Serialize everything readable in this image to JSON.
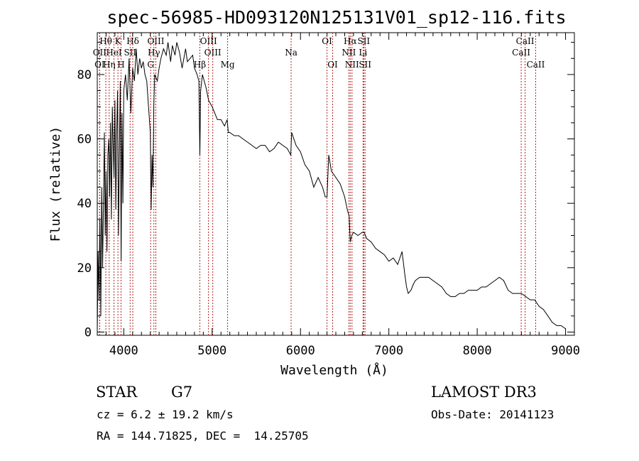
{
  "chart_data": {
    "type": "line",
    "title": "spec-56985-HD093120N125131V01_sp12-116.fits",
    "xlabel": "Wavelength (Å)",
    "ylabel": "Flux (relative)",
    "xlim": [
      3700,
      9100
    ],
    "ylim": [
      -1,
      93
    ],
    "xticks": [
      4000,
      5000,
      6000,
      7000,
      8000,
      9000
    ],
    "yticks": [
      0,
      20,
      40,
      60,
      80
    ],
    "grid": false,
    "spectrum": {
      "name": "flux",
      "x": [
        3700,
        3710,
        3720,
        3730,
        3740,
        3750,
        3760,
        3770,
        3780,
        3790,
        3800,
        3810,
        3820,
        3830,
        3840,
        3850,
        3860,
        3870,
        3880,
        3890,
        3900,
        3910,
        3920,
        3930,
        3940,
        3950,
        3960,
        3970,
        3980,
        3990,
        4000,
        4020,
        4040,
        4060,
        4080,
        4100,
        4120,
        4140,
        4160,
        4180,
        4200,
        4220,
        4240,
        4260,
        4280,
        4300,
        4310,
        4320,
        4330,
        4340,
        4350,
        4380,
        4400,
        4420,
        4450,
        4480,
        4500,
        4530,
        4550,
        4580,
        4600,
        4630,
        4660,
        4700,
        4720,
        4750,
        4780,
        4800,
        4830,
        4850,
        4861,
        4870,
        4890,
        4910,
        4930,
        4960,
        5000,
        5030,
        5060,
        5100,
        5140,
        5170,
        5183,
        5200,
        5250,
        5300,
        5350,
        5400,
        5450,
        5500,
        5550,
        5600,
        5650,
        5700,
        5750,
        5800,
        5850,
        5890,
        5900,
        5950,
        6000,
        6050,
        6100,
        6150,
        6200,
        6250,
        6280,
        6300,
        6320,
        6350,
        6400,
        6450,
        6500,
        6530,
        6550,
        6563,
        6580,
        6600,
        6650,
        6700,
        6720,
        6750,
        6800,
        6850,
        6900,
        6950,
        7000,
        7050,
        7100,
        7150,
        7180,
        7200,
        7220,
        7250,
        7280,
        7300,
        7350,
        7400,
        7450,
        7500,
        7550,
        7600,
        7650,
        7700,
        7750,
        7800,
        7850,
        7900,
        7950,
        8000,
        8050,
        8100,
        8150,
        8200,
        8250,
        8300,
        8350,
        8400,
        8450,
        8500,
        8550,
        8600,
        8650,
        8700,
        8750,
        8800,
        8850,
        8900,
        8950,
        9000
      ],
      "y": [
        0,
        25,
        10,
        35,
        5,
        45,
        20,
        40,
        62,
        30,
        50,
        25,
        55,
        60,
        42,
        65,
        35,
        70,
        58,
        48,
        72,
        38,
        62,
        75,
        30,
        55,
        78,
        22,
        68,
        40,
        75,
        80,
        72,
        85,
        68,
        82,
        78,
        88,
        80,
        85,
        82,
        84,
        80,
        78,
        70,
        62,
        38,
        55,
        45,
        70,
        80,
        78,
        82,
        85,
        88,
        86,
        90,
        84,
        89,
        86,
        90,
        87,
        82,
        88,
        84,
        85,
        86,
        82,
        80,
        78,
        55,
        75,
        80,
        78,
        76,
        72,
        70,
        68,
        66,
        66,
        64,
        66,
        62,
        62,
        61,
        61,
        60,
        59,
        58,
        57,
        58,
        58,
        56,
        57,
        59,
        58,
        57,
        55,
        62,
        58,
        56,
        52,
        50,
        45,
        48,
        45,
        42,
        42,
        55,
        50,
        48,
        46,
        42,
        38,
        36,
        28,
        30,
        31,
        30,
        31,
        31,
        29,
        28,
        26,
        25,
        24,
        22,
        23,
        21,
        25,
        18,
        14,
        12,
        13,
        15,
        16,
        17,
        17,
        17,
        16,
        15,
        14,
        12,
        11,
        11,
        12,
        12,
        13,
        13,
        13,
        14,
        14,
        15,
        16,
        17,
        16,
        13,
        12,
        12,
        12,
        11,
        10,
        10,
        8,
        7,
        5,
        3,
        2,
        2,
        1
      ]
    },
    "reference_lines": [
      {
        "name": "OII",
        "x": 3727,
        "label_row": 2
      },
      {
        "name": "OI",
        "x": 3727,
        "label_row": 3
      },
      {
        "name": "Hθ",
        "x": 3797,
        "label_row": 1
      },
      {
        "name": "Hη",
        "x": 3835,
        "label_row": 3
      },
      {
        "name": "HeI",
        "x": 3889,
        "label_row": 2
      },
      {
        "name": "K",
        "x": 3934,
        "label_row": 1
      },
      {
        "name": "H",
        "x": 3969,
        "label_row": 3
      },
      {
        "name": "SII",
        "x": 4072,
        "label_row": 2
      },
      {
        "name": "Hδ",
        "x": 4102,
        "label_row": 1
      },
      {
        "name": "G",
        "x": 4304,
        "label_row": 3
      },
      {
        "name": "Hγ",
        "x": 4341,
        "label_row": 2
      },
      {
        "name": "OIII",
        "x": 4363,
        "label_row": 1
      },
      {
        "name": "Hβ",
        "x": 4861,
        "label_row": 3
      },
      {
        "name": "OIII",
        "x": 4959,
        "label_row": 1
      },
      {
        "name": "OIII",
        "x": 5007,
        "label_row": 2
      },
      {
        "name": "Mg",
        "x": 5175,
        "label_row": 3
      },
      {
        "name": "Na",
        "x": 5894,
        "label_row": 2
      },
      {
        "name": "OI",
        "x": 6300,
        "label_row": 1
      },
      {
        "name": "OI",
        "x": 6364,
        "label_row": 3
      },
      {
        "name": "NII",
        "x": 6548,
        "label_row": 2
      },
      {
        "name": "Hα",
        "x": 6563,
        "label_row": 1
      },
      {
        "name": "NII",
        "x": 6583,
        "label_row": 3
      },
      {
        "name": "SII",
        "x": 6716,
        "label_row": 1
      },
      {
        "name": "Li",
        "x": 6708,
        "label_row": 2
      },
      {
        "name": "SII",
        "x": 6731,
        "label_row": 3
      },
      {
        "name": "CaII",
        "x": 8498,
        "label_row": 2
      },
      {
        "name": "CaII",
        "x": 8542,
        "label_row": 1
      },
      {
        "name": "CaII",
        "x": 8662,
        "label_row": 3
      }
    ],
    "annotations": {
      "object_class": "STAR",
      "subclass": "G7",
      "survey": "LAMOST DR3",
      "redshift": "cz = 6.2 ± 19.2 km/s",
      "obs_date": "Obs-Date: 20141123",
      "coords": "RA = 144.71825, DEC =  14.25705"
    }
  }
}
